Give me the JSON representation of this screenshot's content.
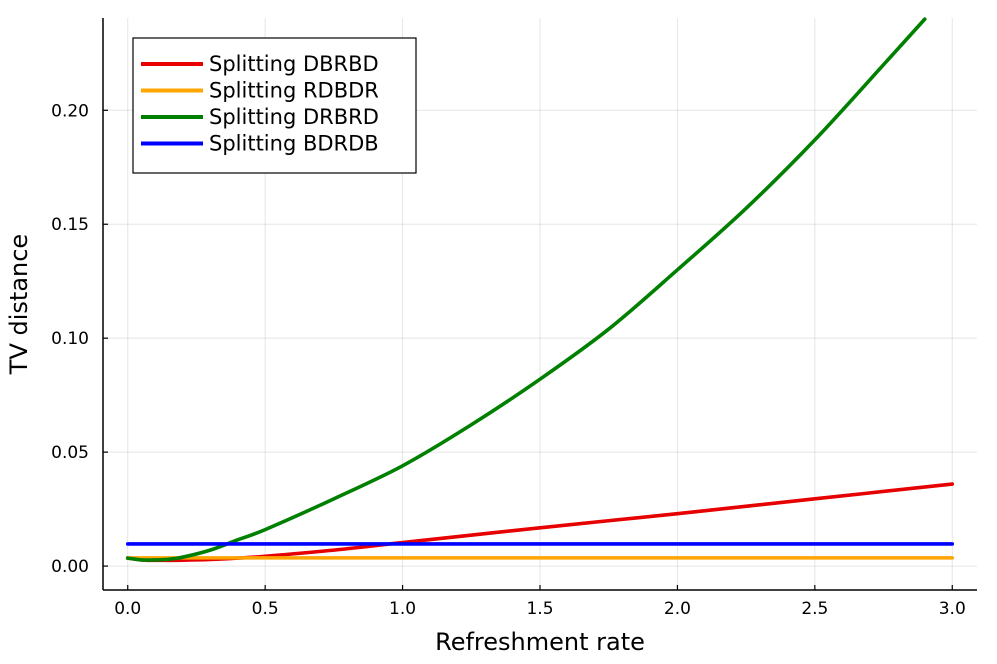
{
  "chart_data": {
    "type": "line",
    "title": "",
    "xlabel": "Refreshment rate",
    "ylabel": "TV distance",
    "xlim": [
      -0.09,
      3.09
    ],
    "ylim": [
      -0.0105,
      0.2405
    ],
    "xticks": [
      0.0,
      0.5,
      1.0,
      1.5,
      2.0,
      2.5,
      3.0
    ],
    "xtick_labels": [
      "0.0",
      "0.5",
      "1.0",
      "1.5",
      "2.0",
      "2.5",
      "3.0"
    ],
    "yticks": [
      0.0,
      0.05,
      0.1,
      0.15,
      0.2
    ],
    "ytick_labels": [
      "0.00",
      "0.05",
      "0.10",
      "0.15",
      "0.20"
    ],
    "grid": true,
    "legend_position": "top-left",
    "series": [
      {
        "name": "Splitting DBRBD",
        "color": "#e60000",
        "x": [
          0.0,
          0.05,
          0.1,
          0.2,
          0.3,
          0.4,
          0.5,
          0.75,
          1.0,
          1.5,
          2.0,
          2.5,
          3.0
        ],
        "y": [
          0.0035,
          0.0027,
          0.0025,
          0.0026,
          0.0029,
          0.0035,
          0.0043,
          0.007,
          0.0103,
          0.0168,
          0.023,
          0.0295,
          0.036
        ]
      },
      {
        "name": "Splitting RDBDR",
        "color": "#ffa500",
        "x": [
          0.0,
          0.5,
          1.0,
          1.5,
          2.0,
          2.5,
          3.0
        ],
        "y": [
          0.0036,
          0.0036,
          0.0036,
          0.0036,
          0.0036,
          0.0036,
          0.0036
        ]
      },
      {
        "name": "Splitting DRBRD",
        "color": "#008000",
        "x": [
          0.0,
          0.05,
          0.1,
          0.15,
          0.2,
          0.3,
          0.4,
          0.5,
          0.75,
          1.0,
          1.25,
          1.5,
          1.75,
          2.0,
          2.25,
          2.5,
          2.75,
          2.9
        ],
        "y": [
          0.0035,
          0.0027,
          0.0027,
          0.003,
          0.0039,
          0.007,
          0.0115,
          0.016,
          0.0295,
          0.044,
          0.062,
          0.082,
          0.104,
          0.13,
          0.157,
          0.187,
          0.22,
          0.24
        ]
      },
      {
        "name": "Splitting BDRDB",
        "color": "#0000ff",
        "x": [
          0.0,
          0.5,
          1.0,
          1.5,
          2.0,
          2.5,
          3.0
        ],
        "y": [
          0.0097,
          0.0097,
          0.0097,
          0.0097,
          0.0097,
          0.0097,
          0.0097
        ]
      }
    ]
  }
}
